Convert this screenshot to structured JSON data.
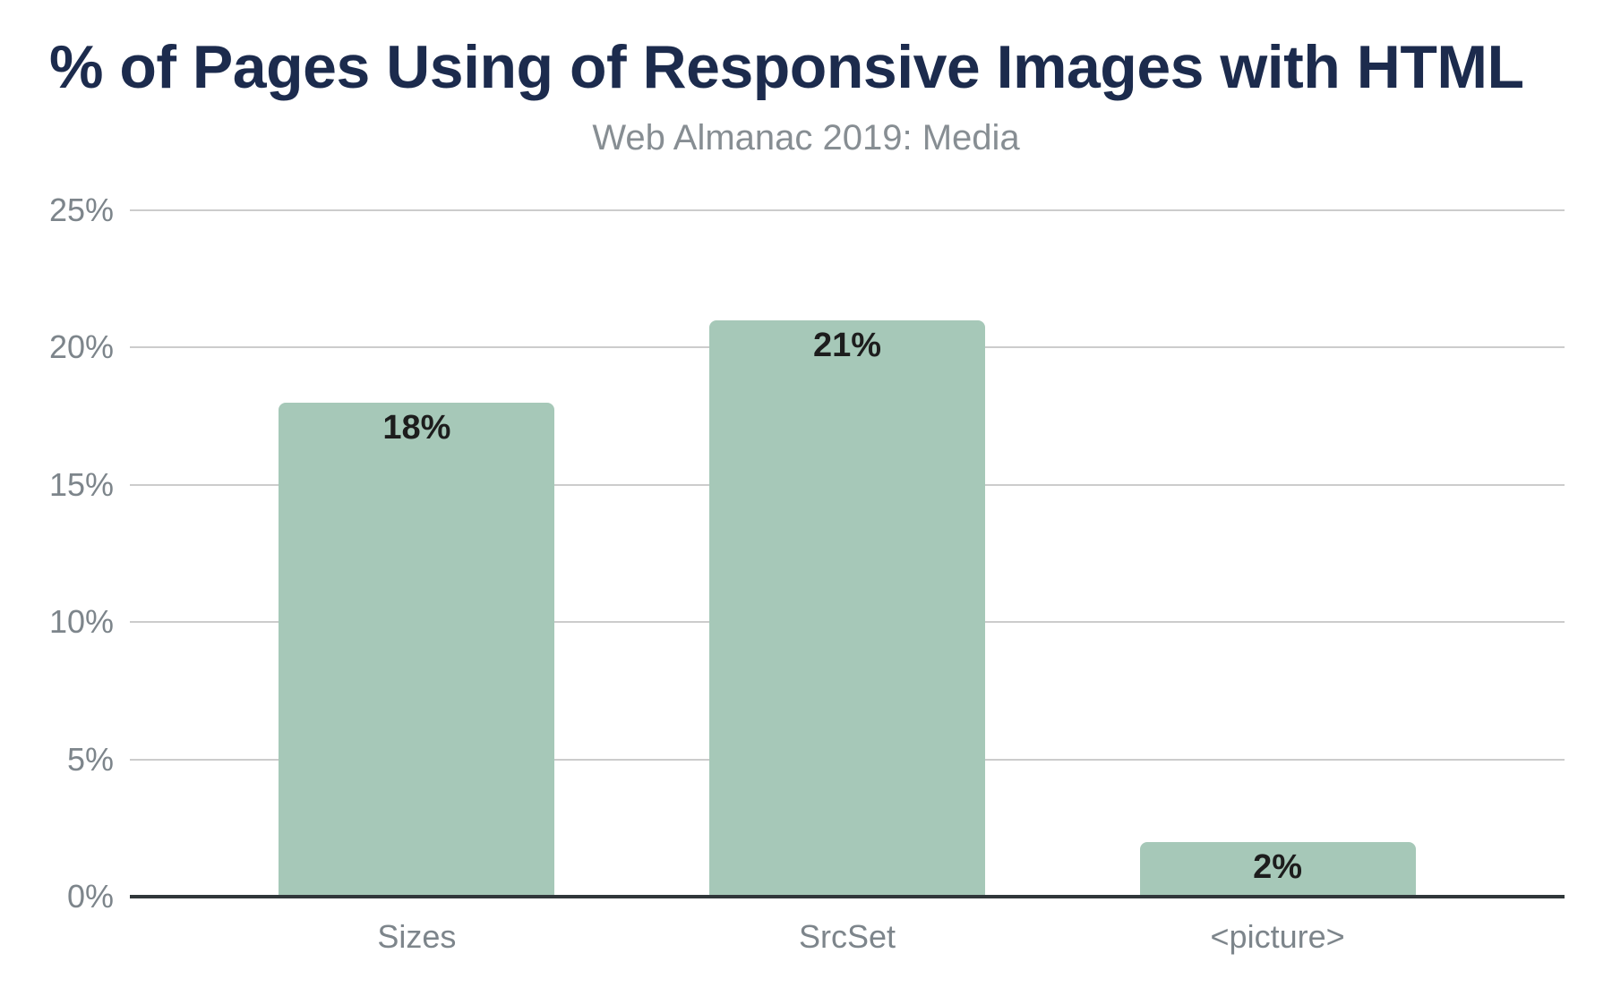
{
  "chart_data": {
    "type": "bar",
    "title": "% of Pages Using of Responsive Images with HTML",
    "subtitle": "Web Almanac 2019: Media",
    "categories": [
      "Sizes",
      "SrcSet",
      "<picture>"
    ],
    "values": [
      18,
      21,
      2
    ],
    "value_labels": [
      "18%",
      "21%",
      "2%"
    ],
    "xlabel": "",
    "ylabel": "",
    "ylim": [
      0,
      25
    ],
    "y_ticks": [
      {
        "value": 25,
        "label": "25%"
      },
      {
        "value": 20,
        "label": "20%"
      },
      {
        "value": 15,
        "label": "15%"
      },
      {
        "value": 10,
        "label": "10%"
      },
      {
        "value": 5,
        "label": "5%"
      },
      {
        "value": 0,
        "label": "0%"
      }
    ],
    "grid": "horizontal",
    "legend": "none",
    "colors": {
      "bar_fill": "#a6c8b8",
      "title": "#1c2b4d",
      "subtitle": "#878e93",
      "axis_labels": "#7d858b",
      "gridline": "#cccccc",
      "axis_line": "#30373a",
      "value_label": "#1d1d1d",
      "background": "#ffffff"
    }
  }
}
